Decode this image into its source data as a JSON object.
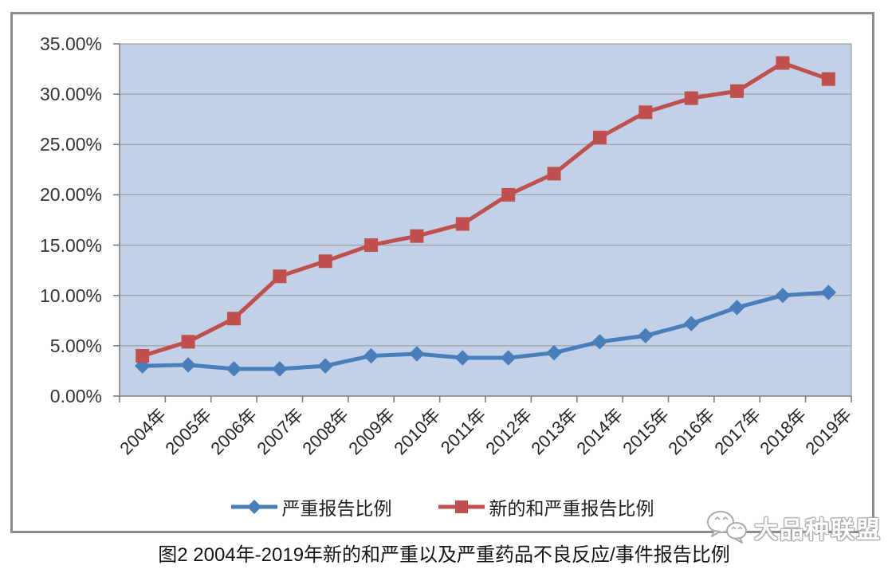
{
  "figure": {
    "caption": "图2 2004年-2019年新的和严重以及严重药品不良反应/事件报告比例",
    "watermark": {
      "text": "大品种联盟",
      "icon": "wechat-chat-bubbles"
    }
  },
  "colors": {
    "serious_series": "#4a7ebb",
    "new_and_serious_series": "#c0504d",
    "plot_background": "#c2d1e8",
    "gridline": "#959595",
    "axis": "#7f7f7f",
    "frame_border": "#8c8c8c"
  },
  "chart_data": {
    "type": "line",
    "title": "",
    "xlabel": "",
    "ylabel": "",
    "categories": [
      "2004年",
      "2005年",
      "2006年",
      "2007年",
      "2008年",
      "2009年",
      "2010年",
      "2011年",
      "2012年",
      "2013年",
      "2014年",
      "2015年",
      "2016年",
      "2017年",
      "2018年",
      "2019年"
    ],
    "series": [
      {
        "name": "严重报告比例",
        "marker": "diamond",
        "color": "#4a7ebb",
        "values": [
          3.0,
          3.1,
          2.7,
          2.7,
          3.0,
          4.0,
          4.2,
          3.8,
          3.8,
          4.3,
          5.4,
          6.0,
          7.2,
          8.8,
          10.0,
          10.3
        ]
      },
      {
        "name": "新的和严重报告比例",
        "marker": "square",
        "color": "#c0504d",
        "values": [
          4.0,
          5.4,
          7.7,
          11.9,
          13.4,
          15.0,
          15.9,
          17.1,
          20.0,
          22.1,
          25.7,
          28.2,
          29.6,
          30.3,
          33.1,
          31.5
        ]
      }
    ],
    "ylim": [
      0,
      35
    ],
    "ytick_step": 5,
    "ytick_labels": [
      "0.00%",
      "5.00%",
      "10.00%",
      "15.00%",
      "20.00%",
      "25.00%",
      "30.00%",
      "35.00%"
    ],
    "grid": true,
    "legend_position": "bottom"
  }
}
